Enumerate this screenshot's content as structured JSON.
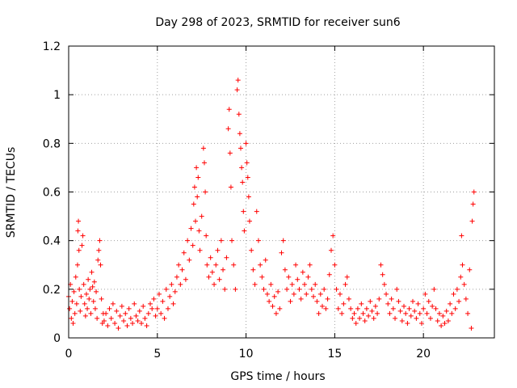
{
  "chart_data": {
    "type": "scatter",
    "title": "Day 298 of 2023, SRMTID for receiver sun6",
    "xlabel": "GPS time / hours",
    "ylabel": "SRMTID / TECUs",
    "xlim": [
      0,
      24
    ],
    "ylim": [
      0,
      1.2
    ],
    "xticks": [
      0,
      5,
      10,
      15,
      20
    ],
    "xtick_labels": [
      "0",
      "5",
      "10",
      "15",
      "20"
    ],
    "yticks": [
      0,
      0.2,
      0.4,
      0.6,
      0.8,
      1,
      1.2
    ],
    "ytick_labels": [
      "0",
      "0.2",
      "0.4",
      "0.6",
      "0.8",
      "1",
      "1.2"
    ],
    "grid": true,
    "marker": "+",
    "color": "#ff0000",
    "series": [
      {
        "name": "sun6",
        "points": [
          [
            0.0,
            0.17
          ],
          [
            0.05,
            0.12
          ],
          [
            0.1,
            0.22
          ],
          [
            0.15,
            0.08
          ],
          [
            0.2,
            0.15
          ],
          [
            0.25,
            0.06
          ],
          [
            0.3,
            0.19
          ],
          [
            0.35,
            0.1
          ],
          [
            0.4,
            0.25
          ],
          [
            0.45,
            0.14
          ],
          [
            0.5,
            0.3
          ],
          [
            0.52,
            0.44
          ],
          [
            0.55,
            0.48
          ],
          [
            0.58,
            0.36
          ],
          [
            0.6,
            0.2
          ],
          [
            0.65,
            0.11
          ],
          [
            0.7,
            0.17
          ],
          [
            0.75,
            0.38
          ],
          [
            0.8,
            0.42
          ],
          [
            0.85,
            0.22
          ],
          [
            0.9,
            0.14
          ],
          [
            0.95,
            0.09
          ],
          [
            1.0,
            0.18
          ],
          [
            1.05,
            0.12
          ],
          [
            1.1,
            0.24
          ],
          [
            1.15,
            0.16
          ],
          [
            1.2,
            0.2
          ],
          [
            1.25,
            0.1
          ],
          [
            1.3,
            0.27
          ],
          [
            1.35,
            0.21
          ],
          [
            1.4,
            0.15
          ],
          [
            1.45,
            0.23
          ],
          [
            1.5,
            0.12
          ],
          [
            1.55,
            0.19
          ],
          [
            1.6,
            0.08
          ],
          [
            1.65,
            0.32
          ],
          [
            1.7,
            0.36
          ],
          [
            1.75,
            0.4
          ],
          [
            1.8,
            0.3
          ],
          [
            1.85,
            0.16
          ],
          [
            1.9,
            0.06
          ],
          [
            1.95,
            0.1
          ],
          [
            2.0,
            0.07
          ],
          [
            2.1,
            0.1
          ],
          [
            2.2,
            0.05
          ],
          [
            2.3,
            0.12
          ],
          [
            2.4,
            0.08
          ],
          [
            2.5,
            0.14
          ],
          [
            2.6,
            0.06
          ],
          [
            2.7,
            0.11
          ],
          [
            2.8,
            0.04
          ],
          [
            2.9,
            0.09
          ],
          [
            3.0,
            0.13
          ],
          [
            3.1,
            0.07
          ],
          [
            3.2,
            0.1
          ],
          [
            3.3,
            0.05
          ],
          [
            3.4,
            0.12
          ],
          [
            3.5,
            0.08
          ],
          [
            3.6,
            0.06
          ],
          [
            3.7,
            0.14
          ],
          [
            3.8,
            0.09
          ],
          [
            3.9,
            0.07
          ],
          [
            4.0,
            0.11
          ],
          [
            4.1,
            0.06
          ],
          [
            4.2,
            0.13
          ],
          [
            4.3,
            0.08
          ],
          [
            4.4,
            0.05
          ],
          [
            4.5,
            0.1
          ],
          [
            4.6,
            0.14
          ],
          [
            4.7,
            0.12
          ],
          [
            4.8,
            0.16
          ],
          [
            4.9,
            0.09
          ],
          [
            5.0,
            0.12
          ],
          [
            5.1,
            0.18
          ],
          [
            5.2,
            0.1
          ],
          [
            5.3,
            0.15
          ],
          [
            5.4,
            0.08
          ],
          [
            5.5,
            0.2
          ],
          [
            5.6,
            0.12
          ],
          [
            5.7,
            0.17
          ],
          [
            5.8,
            0.22
          ],
          [
            5.9,
            0.14
          ],
          [
            6.0,
            0.19
          ],
          [
            6.1,
            0.25
          ],
          [
            6.2,
            0.3
          ],
          [
            6.3,
            0.22
          ],
          [
            6.4,
            0.28
          ],
          [
            6.5,
            0.35
          ],
          [
            6.6,
            0.24
          ],
          [
            6.7,
            0.4
          ],
          [
            6.8,
            0.32
          ],
          [
            6.9,
            0.45
          ],
          [
            7.0,
            0.38
          ],
          [
            7.05,
            0.55
          ],
          [
            7.1,
            0.62
          ],
          [
            7.15,
            0.48
          ],
          [
            7.2,
            0.7
          ],
          [
            7.25,
            0.58
          ],
          [
            7.3,
            0.66
          ],
          [
            7.35,
            0.44
          ],
          [
            7.4,
            0.36
          ],
          [
            7.5,
            0.5
          ],
          [
            7.6,
            0.78
          ],
          [
            7.65,
            0.72
          ],
          [
            7.7,
            0.6
          ],
          [
            7.75,
            0.42
          ],
          [
            7.8,
            0.3
          ],
          [
            7.9,
            0.25
          ],
          [
            8.0,
            0.33
          ],
          [
            8.1,
            0.27
          ],
          [
            8.2,
            0.22
          ],
          [
            8.3,
            0.3
          ],
          [
            8.4,
            0.36
          ],
          [
            8.5,
            0.24
          ],
          [
            8.6,
            0.4
          ],
          [
            8.7,
            0.28
          ],
          [
            8.8,
            0.2
          ],
          [
            8.9,
            0.33
          ],
          [
            9.0,
            0.86
          ],
          [
            9.05,
            0.94
          ],
          [
            9.1,
            0.76
          ],
          [
            9.15,
            0.62
          ],
          [
            9.2,
            0.4
          ],
          [
            9.3,
            0.3
          ],
          [
            9.4,
            0.2
          ],
          [
            9.5,
            1.02
          ],
          [
            9.55,
            1.06
          ],
          [
            9.6,
            0.92
          ],
          [
            9.65,
            0.84
          ],
          [
            9.7,
            0.78
          ],
          [
            9.75,
            0.7
          ],
          [
            9.8,
            0.64
          ],
          [
            9.85,
            0.52
          ],
          [
            9.9,
            0.44
          ],
          [
            10.0,
            0.8
          ],
          [
            10.05,
            0.72
          ],
          [
            10.1,
            0.66
          ],
          [
            10.15,
            0.58
          ],
          [
            10.2,
            0.48
          ],
          [
            10.3,
            0.36
          ],
          [
            10.4,
            0.28
          ],
          [
            10.5,
            0.22
          ],
          [
            10.6,
            0.52
          ],
          [
            10.7,
            0.4
          ],
          [
            10.8,
            0.3
          ],
          [
            10.9,
            0.25
          ],
          [
            11.0,
            0.2
          ],
          [
            11.1,
            0.32
          ],
          [
            11.2,
            0.18
          ],
          [
            11.3,
            0.15
          ],
          [
            11.4,
            0.22
          ],
          [
            11.5,
            0.13
          ],
          [
            11.6,
            0.17
          ],
          [
            11.7,
            0.1
          ],
          [
            11.8,
            0.19
          ],
          [
            11.9,
            0.12
          ],
          [
            12.0,
            0.35
          ],
          [
            12.1,
            0.4
          ],
          [
            12.2,
            0.28
          ],
          [
            12.3,
            0.2
          ],
          [
            12.4,
            0.25
          ],
          [
            12.5,
            0.15
          ],
          [
            12.6,
            0.22
          ],
          [
            12.7,
            0.18
          ],
          [
            12.8,
            0.3
          ],
          [
            12.9,
            0.24
          ],
          [
            13.0,
            0.2
          ],
          [
            13.1,
            0.16
          ],
          [
            13.2,
            0.27
          ],
          [
            13.3,
            0.22
          ],
          [
            13.4,
            0.18
          ],
          [
            13.5,
            0.25
          ],
          [
            13.6,
            0.3
          ],
          [
            13.7,
            0.2
          ],
          [
            13.8,
            0.17
          ],
          [
            13.9,
            0.22
          ],
          [
            14.0,
            0.15
          ],
          [
            14.1,
            0.1
          ],
          [
            14.2,
            0.18
          ],
          [
            14.3,
            0.13
          ],
          [
            14.4,
            0.2
          ],
          [
            14.5,
            0.12
          ],
          [
            14.6,
            0.16
          ],
          [
            14.7,
            0.26
          ],
          [
            14.8,
            0.36
          ],
          [
            14.9,
            0.42
          ],
          [
            15.0,
            0.3
          ],
          [
            15.1,
            0.2
          ],
          [
            15.2,
            0.12
          ],
          [
            15.3,
            0.18
          ],
          [
            15.4,
            0.1
          ],
          [
            15.5,
            0.14
          ],
          [
            15.6,
            0.22
          ],
          [
            15.7,
            0.25
          ],
          [
            15.8,
            0.16
          ],
          [
            15.9,
            0.12
          ],
          [
            16.0,
            0.08
          ],
          [
            16.1,
            0.1
          ],
          [
            16.2,
            0.06
          ],
          [
            16.3,
            0.12
          ],
          [
            16.4,
            0.08
          ],
          [
            16.5,
            0.14
          ],
          [
            16.6,
            0.1
          ],
          [
            16.7,
            0.07
          ],
          [
            16.8,
            0.12
          ],
          [
            16.9,
            0.09
          ],
          [
            17.0,
            0.15
          ],
          [
            17.1,
            0.11
          ],
          [
            17.2,
            0.08
          ],
          [
            17.3,
            0.13
          ],
          [
            17.4,
            0.1
          ],
          [
            17.5,
            0.16
          ],
          [
            17.6,
            0.3
          ],
          [
            17.7,
            0.26
          ],
          [
            17.8,
            0.22
          ],
          [
            17.9,
            0.18
          ],
          [
            18.0,
            0.14
          ],
          [
            18.1,
            0.1
          ],
          [
            18.2,
            0.16
          ],
          [
            18.3,
            0.12
          ],
          [
            18.4,
            0.08
          ],
          [
            18.5,
            0.2
          ],
          [
            18.6,
            0.15
          ],
          [
            18.7,
            0.11
          ],
          [
            18.8,
            0.07
          ],
          [
            18.9,
            0.13
          ],
          [
            19.0,
            0.1
          ],
          [
            19.1,
            0.06
          ],
          [
            19.2,
            0.12
          ],
          [
            19.3,
            0.09
          ],
          [
            19.4,
            0.15
          ],
          [
            19.5,
            0.11
          ],
          [
            19.6,
            0.08
          ],
          [
            19.7,
            0.14
          ],
          [
            19.8,
            0.1
          ],
          [
            19.9,
            0.06
          ],
          [
            20.0,
            0.12
          ],
          [
            20.1,
            0.18
          ],
          [
            20.2,
            0.1
          ],
          [
            20.3,
            0.15
          ],
          [
            20.4,
            0.08
          ],
          [
            20.5,
            0.13
          ],
          [
            20.6,
            0.2
          ],
          [
            20.7,
            0.12
          ],
          [
            20.8,
            0.07
          ],
          [
            20.9,
            0.1
          ],
          [
            21.0,
            0.05
          ],
          [
            21.1,
            0.09
          ],
          [
            21.2,
            0.06
          ],
          [
            21.3,
            0.11
          ],
          [
            21.4,
            0.07
          ],
          [
            21.5,
            0.14
          ],
          [
            21.6,
            0.1
          ],
          [
            21.7,
            0.18
          ],
          [
            21.8,
            0.12
          ],
          [
            21.9,
            0.2
          ],
          [
            22.0,
            0.15
          ],
          [
            22.1,
            0.25
          ],
          [
            22.15,
            0.42
          ],
          [
            22.2,
            0.3
          ],
          [
            22.3,
            0.22
          ],
          [
            22.4,
            0.16
          ],
          [
            22.5,
            0.1
          ],
          [
            22.6,
            0.28
          ],
          [
            22.7,
            0.04
          ],
          [
            22.75,
            0.48
          ],
          [
            22.8,
            0.55
          ],
          [
            22.85,
            0.6
          ]
        ]
      }
    ]
  }
}
